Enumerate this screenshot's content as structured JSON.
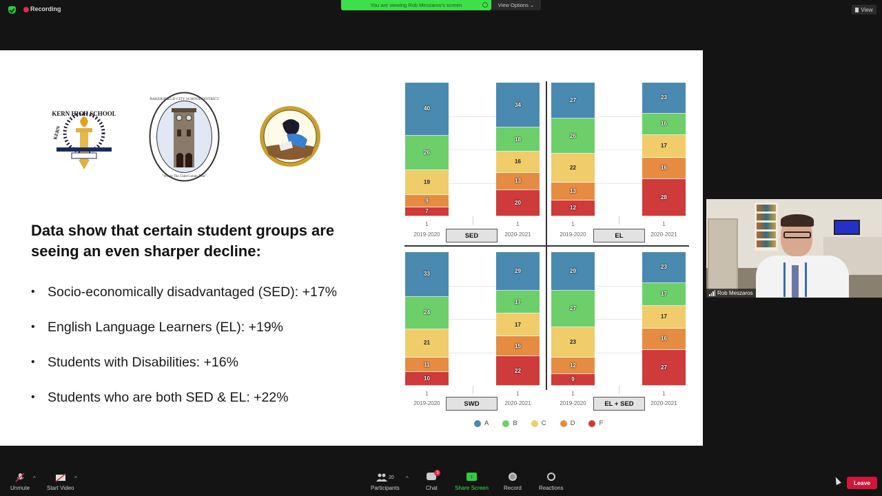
{
  "topbar": {
    "recording_label": "Recording",
    "viewing_banner": "You are viewing Rob Meszaros's screen",
    "view_options_label": "View Options ⌄",
    "view_label": "View"
  },
  "slide": {
    "logos": [
      {
        "name": "Kern High School District",
        "text": "KERN HIGH SCHOOL DISTRICT"
      },
      {
        "name": "Bakersfield City School District",
        "text": "BAKERSFIELD CITY SCHOOL DISTRICT",
        "motto": "Where The Child Comes First"
      },
      {
        "name": "Panama-Buena Vista Union School District",
        "text": "PANAMA-BUENA VISTA UNION SCHOOL DISTRICT"
      }
    ],
    "heading": "Data show that certain student groups are seeing an even sharper decline:",
    "bullets": [
      "Socio-economically disadvantaged (SED): +17%",
      "English Language Learners (EL): +19%",
      "Students with Disabilities: +16%",
      "Students who are both SED & EL: +22%"
    ]
  },
  "chart_data": {
    "type": "bar",
    "stacked": true,
    "normalized_percent": true,
    "title": "",
    "categories": [
      "2019-2020",
      "2020-2021"
    ],
    "tick_label": "1",
    "legend": [
      {
        "label": "A",
        "color": "#4a8ab0"
      },
      {
        "label": "B",
        "color": "#6ccf6a"
      },
      {
        "label": "C",
        "color": "#f0cc6a"
      },
      {
        "label": "D",
        "color": "#e58c42"
      },
      {
        "label": "F",
        "color": "#cf3a3a"
      }
    ],
    "legend_position": "bottom",
    "panels": [
      {
        "group": "SED",
        "series": {
          "2019-2020": {
            "A": 40,
            "B": 26,
            "C": 19,
            "D": 9,
            "F": 7
          },
          "2020-2021": {
            "A": 34,
            "B": 18,
            "C": 16,
            "D": 13,
            "F": 20
          }
        }
      },
      {
        "group": "EL",
        "series": {
          "2019-2020": {
            "A": 27,
            "B": 26,
            "C": 22,
            "D": 13,
            "F": 12
          },
          "2020-2021": {
            "A": 23,
            "B": 16,
            "C": 17,
            "D": 16,
            "F": 28
          }
        }
      },
      {
        "group": "SWD",
        "series": {
          "2019-2020": {
            "A": 33,
            "B": 24,
            "C": 21,
            "D": 11,
            "F": 10
          },
          "2020-2021": {
            "A": 29,
            "B": 17,
            "C": 17,
            "D": 15,
            "F": 22
          }
        }
      },
      {
        "group": "EL + SED",
        "series": {
          "2019-2020": {
            "A": 29,
            "B": 27,
            "C": 23,
            "D": 12,
            "F": 9
          },
          "2020-2021": {
            "A": 23,
            "B": 17,
            "C": 17,
            "D": 16,
            "F": 27
          }
        }
      }
    ]
  },
  "video": {
    "participant_name": "Rob Meszaros"
  },
  "toolbar": {
    "unmute_label": "Unmute",
    "start_video_label": "Start Video",
    "participants_label": "Participants",
    "participants_count": "20",
    "chat_label": "Chat",
    "chat_badge": "3",
    "share_screen_label": "Share Screen",
    "record_label": "Record",
    "reactions_label": "Reactions",
    "leave_label": "Leave"
  },
  "colors": {
    "accent_green": "#3ee04a",
    "leave_red": "#d1163a",
    "recording_red": "#e02a4a"
  }
}
